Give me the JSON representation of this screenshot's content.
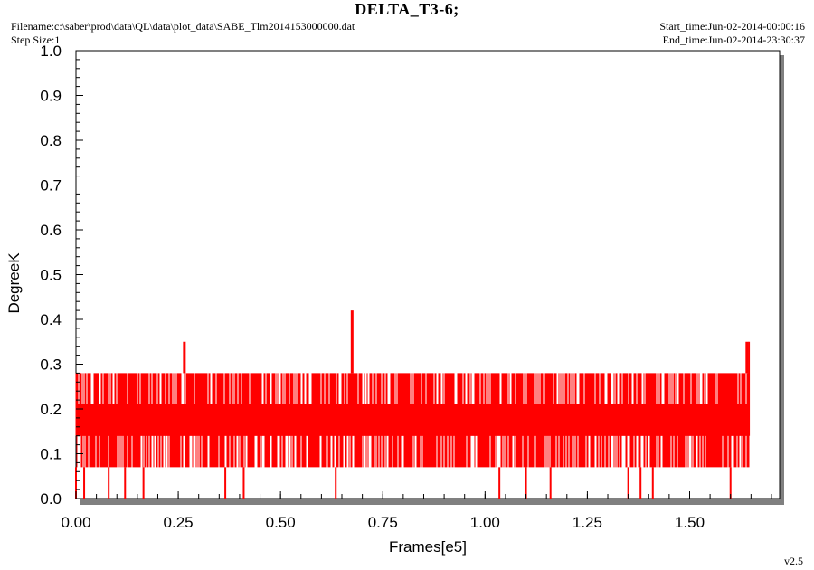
{
  "header": {
    "title": "DELTA_T3-6;",
    "filename": "Filename:c:\\saber\\prod\\data\\QL\\data\\plot_data\\SABE_Tlm2014153000000.dat",
    "step_size": "Step Size:1",
    "start_time": "Start_time:Jun-02-2014-00:00:16",
    "end_time": "End_time:Jun-02-2014-23:30:37"
  },
  "footer": {
    "version": "v2.5"
  },
  "colors": {
    "series": "#ff0000",
    "frame_shadow": "#808080",
    "axis": "#000000"
  },
  "chart_data": {
    "type": "line",
    "title": "DELTA_T3-6;",
    "xlabel": "Frames[e5]",
    "ylabel": "DegreeK",
    "xlim": [
      0,
      1.72
    ],
    "ylim": [
      0,
      1.0
    ],
    "x_ticks": [
      "0.00",
      "0.25",
      "0.50",
      "0.75",
      "1.00",
      "1.25",
      "1.50"
    ],
    "x_tick_values": [
      0,
      0.25,
      0.5,
      0.75,
      1.0,
      1.25,
      1.5
    ],
    "y_ticks": [
      "0.0",
      "0.1",
      "0.2",
      "0.3",
      "0.4",
      "0.5",
      "0.6",
      "0.7",
      "0.8",
      "0.9",
      "1.0"
    ],
    "y_tick_values": [
      0,
      0.1,
      0.2,
      0.3,
      0.4,
      0.5,
      0.6,
      0.7,
      0.8,
      0.9,
      1.0
    ],
    "grid": false,
    "series": [
      {
        "color": "#ff0000",
        "x_range": [
          0,
          1.645
        ],
        "levels": [
          0.0,
          0.07,
          0.14,
          0.21,
          0.28,
          0.35,
          0.42
        ],
        "main_band": [
          0.07,
          0.28
        ],
        "dense_band": [
          0.14,
          0.21
        ],
        "spikes": [
          {
            "x": 0.265,
            "y": 0.35
          },
          {
            "x": 0.675,
            "y": 0.42
          },
          {
            "x": 1.64,
            "y": 0.35
          }
        ],
        "dips": [
          {
            "x": 0.0,
            "y": 0.0
          },
          {
            "x": 0.02,
            "y": 0.0
          },
          {
            "x": 0.08,
            "y": 0.0
          },
          {
            "x": 0.12,
            "y": 0.0
          },
          {
            "x": 0.165,
            "y": 0.0
          },
          {
            "x": 0.365,
            "y": 0.0
          },
          {
            "x": 0.41,
            "y": 0.0
          },
          {
            "x": 0.635,
            "y": 0.0
          },
          {
            "x": 1.035,
            "y": 0.0
          },
          {
            "x": 1.1,
            "y": 0.0
          },
          {
            "x": 1.16,
            "y": 0.0
          },
          {
            "x": 1.35,
            "y": 0.0
          },
          {
            "x": 1.38,
            "y": 0.0
          },
          {
            "x": 1.41,
            "y": 0.0
          },
          {
            "x": 1.6,
            "y": 0.0
          }
        ]
      }
    ]
  }
}
